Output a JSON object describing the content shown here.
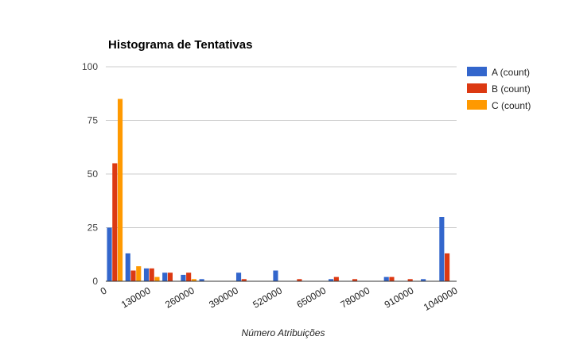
{
  "chart_data": {
    "type": "bar",
    "title": "Histograma de Tentativas",
    "xlabel": "Número Atribuições",
    "ylabel": "",
    "ylim": [
      0,
      100
    ],
    "yticks": [
      "0",
      "25",
      "50",
      "75",
      "100"
    ],
    "xticks": [
      "0",
      "130000",
      "260000",
      "390000",
      "520000",
      "650000",
      "780000",
      "910000",
      "1040000"
    ],
    "legend_position": "right",
    "grid": true,
    "bins": 19,
    "series": [
      {
        "name": "A (count)",
        "color": "#3366cc",
        "values": [
          25,
          13,
          6,
          4,
          3,
          1,
          0,
          4,
          0,
          5,
          0,
          0,
          1,
          0,
          0,
          2,
          0,
          1,
          30
        ]
      },
      {
        "name": "B (count)",
        "color": "#dc3912",
        "values": [
          55,
          5,
          6,
          4,
          4,
          0,
          0,
          1,
          0,
          0,
          1,
          0,
          2,
          1,
          0,
          2,
          1,
          0,
          13
        ]
      },
      {
        "name": "C (count)",
        "color": "#ff9900",
        "values": [
          85,
          7,
          2,
          0,
          1,
          0,
          0,
          0,
          0,
          0,
          0,
          0,
          0,
          0,
          0,
          0,
          0,
          0,
          0
        ]
      }
    ]
  }
}
